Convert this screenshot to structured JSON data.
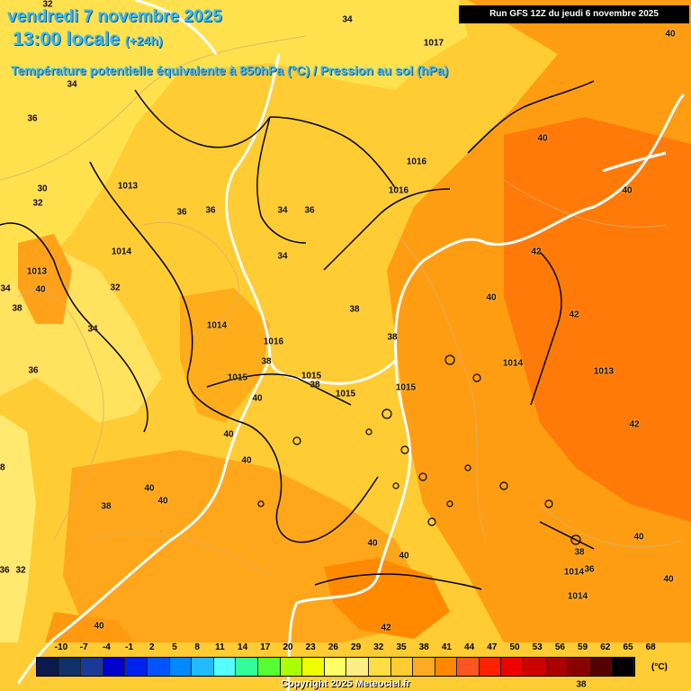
{
  "header": {
    "date": "vendredi 7 novembre 2025",
    "time": "13:00 locale",
    "offset": "(+24h)",
    "subtitle": "Température potentielle équivalente à 850hPa (°C) / Pression au sol (hPa)",
    "run": "Run GFS 12Z du jeudi 6 novembre 2025"
  },
  "colors": {
    "yellow": "#ffe14d",
    "light_orange": "#ffcc33",
    "orange": "#ffad1a",
    "dark_orange": "#ff8c00",
    "red_orange": "#ff6a00",
    "border_color": "#000000",
    "isobar_color": "#ffffff"
  },
  "temperature_labels": [
    "32",
    "34",
    "34",
    "36",
    "30",
    "32",
    "34",
    "40",
    "38",
    "36",
    "36",
    "36",
    "34",
    "36",
    "34",
    "32",
    "34",
    "38",
    "38",
    "38",
    "38",
    "40",
    "40",
    "40",
    "40",
    "40",
    "40",
    "38",
    "40",
    "38",
    "40",
    "42",
    "40",
    "42",
    "42",
    "40",
    "40",
    "38",
    "36",
    "40",
    "36",
    "32",
    "38",
    "42",
    "40",
    "40"
  ],
  "pressure_labels": [
    "1017",
    "1013",
    "1016",
    "1016",
    "1014",
    "1013",
    "1014",
    "1016",
    "1015",
    "1015",
    "1015",
    "1015",
    "1014",
    "1013",
    "1014",
    "1014"
  ],
  "legend": {
    "ticks": [
      "-10",
      "-7",
      "-4",
      "-1",
      "2",
      "5",
      "8",
      "11",
      "14",
      "17",
      "20",
      "23",
      "26",
      "29",
      "32",
      "35",
      "38",
      "41",
      "44",
      "47",
      "50",
      "53",
      "56",
      "59",
      "62",
      "65",
      "68"
    ],
    "colors": [
      "#0a1a4d",
      "#10306b",
      "#1a3a99",
      "#0000cc",
      "#0022ee",
      "#0055ff",
      "#0088ff",
      "#22bbff",
      "#55ffff",
      "#33ff99",
      "#55ff33",
      "#aaff00",
      "#eeff00",
      "#ffff66",
      "#ffee88",
      "#ffdd44",
      "#ffcc33",
      "#ffaa22",
      "#ff8800",
      "#ff5522",
      "#ff2200",
      "#ee0000",
      "#cc0000",
      "#aa0000",
      "#880000",
      "#550000",
      "#000000"
    ],
    "unit": "(°C)"
  },
  "copyright": "Copyright 2025 Meteociel.fr"
}
